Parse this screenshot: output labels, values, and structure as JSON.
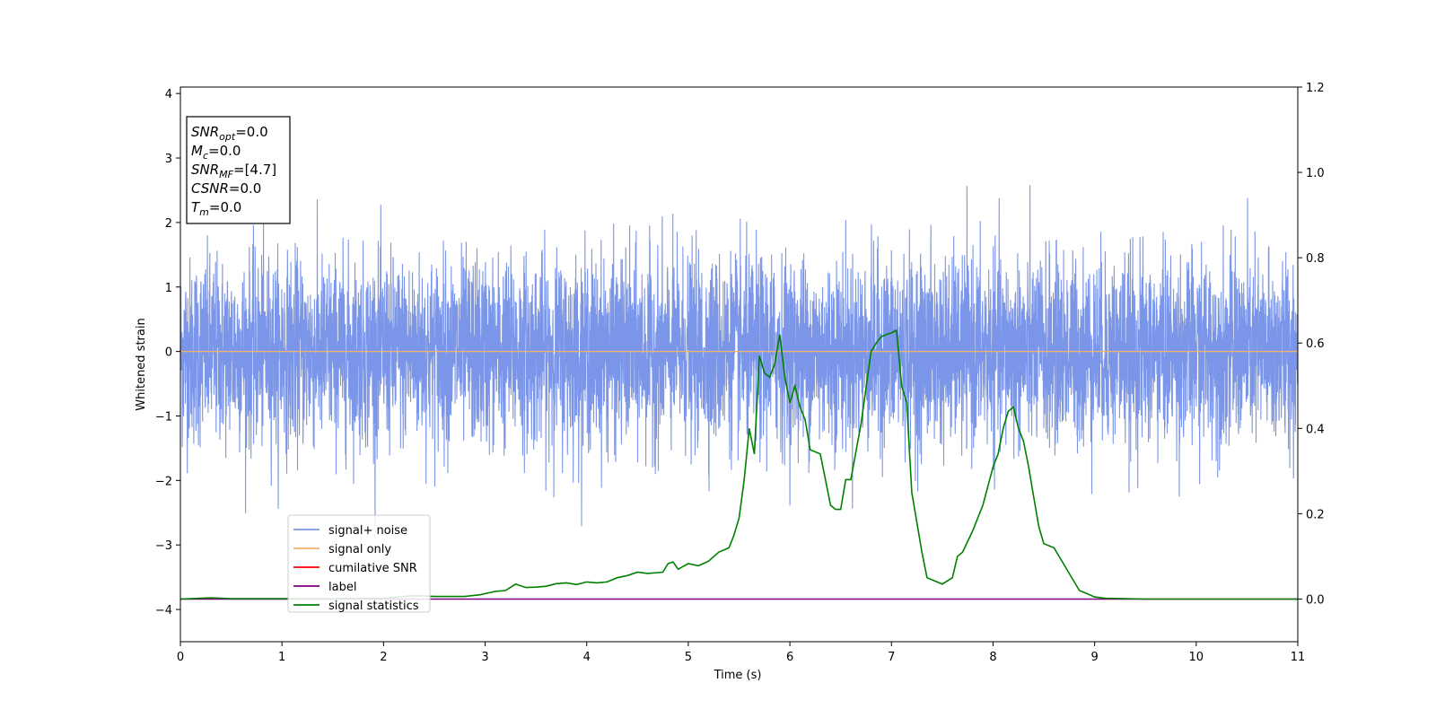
{
  "chart_data": {
    "type": "line",
    "xlabel": "Time (s)",
    "ylabel": "Whitened strain",
    "xlim": [
      0,
      11
    ],
    "ylim_left": [
      -4.5,
      4.1
    ],
    "ylim_right": [
      -0.1,
      1.2
    ],
    "x_ticks": [
      0,
      1,
      2,
      3,
      4,
      5,
      6,
      7,
      8,
      9,
      10,
      11
    ],
    "y_ticks_left": [
      -4,
      -3,
      -2,
      -1,
      0,
      1,
      2,
      3,
      4
    ],
    "y_ticks_right": [
      0.0,
      0.2,
      0.4,
      0.6,
      0.8,
      1.0,
      1.2
    ],
    "grid": false,
    "legend_position": "lower-left",
    "info_box": [
      {
        "base": "SNR",
        "sub": "opt",
        "rest": "=0.0"
      },
      {
        "base": "M",
        "sub": "c",
        "rest": "=0.0"
      },
      {
        "base": "SNR",
        "sub": "MF",
        "rest": "=[4.7]"
      },
      {
        "base": "CSNR",
        "sub": "",
        "rest": "=0.0"
      },
      {
        "base": "T",
        "sub": "m",
        "rest": "=0.0"
      }
    ],
    "series": [
      {
        "name": "signal+ noise",
        "axis": "left",
        "color": "#7b96e8",
        "kind": "noise",
        "sigma": 0.72,
        "x_range": [
          0,
          11
        ],
        "approx_range": [
          -2.9,
          2.7
        ]
      },
      {
        "name": "signal only",
        "axis": "left",
        "color": "#f5b26b",
        "x": [
          0,
          11
        ],
        "y": [
          0,
          0
        ]
      },
      {
        "name": "cumilative SNR",
        "axis": "right",
        "color": "#ff0000",
        "x": [],
        "y": []
      },
      {
        "name": "label",
        "axis": "right",
        "color": "#800080",
        "x": [
          0,
          11
        ],
        "y": [
          0,
          0
        ]
      },
      {
        "name": "signal statistics",
        "axis": "right",
        "color": "#008000",
        "x": [
          0,
          0.3,
          0.5,
          1.0,
          1.5,
          2.0,
          2.3,
          2.5,
          2.8,
          2.95,
          3.1,
          3.2,
          3.3,
          3.4,
          3.5,
          3.6,
          3.7,
          3.8,
          3.9,
          4.0,
          4.1,
          4.2,
          4.3,
          4.4,
          4.5,
          4.6,
          4.7,
          4.75,
          4.8,
          4.85,
          4.9,
          5.0,
          5.1,
          5.2,
          5.3,
          5.4,
          5.45,
          5.5,
          5.55,
          5.6,
          5.65,
          5.7,
          5.75,
          5.8,
          5.85,
          5.9,
          5.95,
          6.0,
          6.05,
          6.1,
          6.15,
          6.2,
          6.3,
          6.4,
          6.45,
          6.5,
          6.55,
          6.6,
          6.7,
          6.8,
          6.85,
          6.9,
          6.95,
          7.0,
          7.05,
          7.1,
          7.15,
          7.2,
          7.3,
          7.35,
          7.5,
          7.6,
          7.65,
          7.7,
          7.8,
          7.9,
          8.0,
          8.05,
          8.1,
          8.15,
          8.2,
          8.25,
          8.3,
          8.35,
          8.4,
          8.45,
          8.5,
          8.6,
          8.7,
          8.75,
          8.8,
          8.85,
          8.9,
          9.0,
          9.1,
          9.3,
          9.5,
          10.0,
          10.5,
          11.0
        ],
        "y": [
          0.0,
          0.003,
          0.001,
          0.001,
          0.001,
          0.002,
          0.008,
          0.006,
          0.006,
          0.01,
          0.018,
          0.02,
          0.035,
          0.027,
          0.028,
          0.03,
          0.036,
          0.038,
          0.034,
          0.04,
          0.038,
          0.04,
          0.05,
          0.055,
          0.063,
          0.06,
          0.062,
          0.063,
          0.083,
          0.087,
          0.07,
          0.083,
          0.078,
          0.089,
          0.11,
          0.12,
          0.15,
          0.19,
          0.28,
          0.4,
          0.34,
          0.57,
          0.53,
          0.52,
          0.55,
          0.62,
          0.52,
          0.46,
          0.5,
          0.45,
          0.42,
          0.35,
          0.34,
          0.22,
          0.21,
          0.21,
          0.28,
          0.28,
          0.41,
          0.58,
          0.6,
          0.615,
          0.62,
          0.624,
          0.63,
          0.5,
          0.46,
          0.25,
          0.11,
          0.05,
          0.035,
          0.05,
          0.1,
          0.11,
          0.16,
          0.22,
          0.31,
          0.34,
          0.4,
          0.44,
          0.45,
          0.4,
          0.37,
          0.31,
          0.24,
          0.17,
          0.13,
          0.12,
          0.08,
          0.06,
          0.04,
          0.02,
          0.015,
          0.005,
          0.002,
          0.001,
          0.0,
          0.0,
          0.0,
          0.0
        ]
      }
    ]
  }
}
